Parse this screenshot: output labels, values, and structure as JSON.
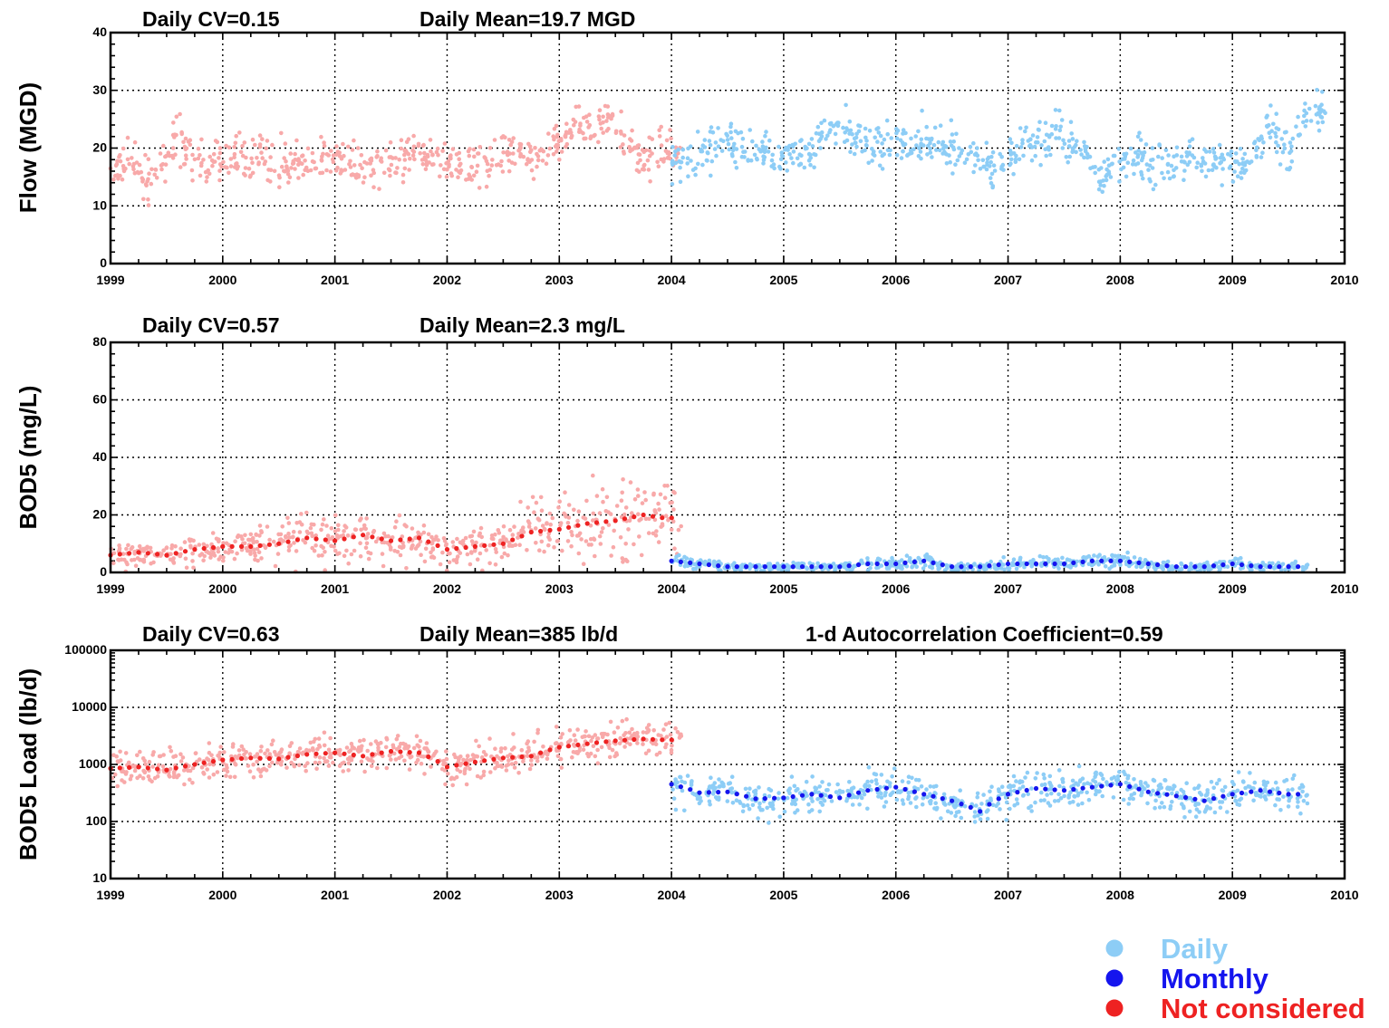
{
  "chart_data": [
    {
      "type": "scatter",
      "ylabel": "Flow (MGD)",
      "ylim": [
        0,
        40
      ],
      "yticks": [
        "0",
        "10",
        "20",
        "30",
        "40"
      ],
      "xticks": [
        "1999",
        "2000",
        "2001",
        "2002",
        "2003",
        "2004",
        "2005",
        "2006",
        "2007",
        "2008",
        "2009",
        "2010"
      ],
      "stats": [
        "Daily CV=0.15",
        "Daily Mean=19.7  MGD"
      ],
      "grid": true,
      "series": [
        {
          "name": "Not considered",
          "color": "#f8a9a9",
          "kind": "daily",
          "x": [
            "1999-01",
            "1999-03",
            "1999-05",
            "1999-07",
            "1999-08",
            "1999-09",
            "1999-11",
            "2000-01",
            "2000-03",
            "2000-06",
            "2000-09",
            "2000-12",
            "2001-03",
            "2001-06",
            "2001-09",
            "2001-12",
            "2002-03",
            "2002-06",
            "2002-08",
            "2002-11",
            "2003-01",
            "2003-03",
            "2003-05",
            "2003-06",
            "2003-08",
            "2003-10",
            "2003-12"
          ],
          "values": [
            16,
            17,
            15,
            16,
            24,
            19,
            17,
            18,
            19,
            18,
            17,
            18,
            17,
            17,
            19,
            17,
            17,
            18,
            20,
            19,
            20,
            25,
            22,
            26,
            21,
            19,
            19
          ]
        },
        {
          "name": "Daily",
          "color": "#8dcdf6",
          "kind": "daily",
          "x": [
            "2004-01",
            "2004-03",
            "2004-06",
            "2004-09",
            "2004-12",
            "2005-03",
            "2005-06",
            "2005-09",
            "2005-12",
            "2006-03",
            "2006-06",
            "2006-09",
            "2006-12",
            "2007-03",
            "2007-06",
            "2007-09",
            "2007-11",
            "2008-01",
            "2008-03",
            "2008-06",
            "2008-09",
            "2008-12",
            "2009-03",
            "2009-05",
            "2009-07",
            "2009-09"
          ],
          "values": [
            18,
            18,
            21,
            20,
            19,
            19,
            23,
            22,
            20,
            21,
            20,
            18,
            17,
            21,
            22,
            19,
            14,
            18,
            19,
            16,
            19,
            17,
            18,
            25,
            19,
            26
          ]
        }
      ]
    },
    {
      "type": "scatter",
      "ylabel": "BOD5 (mg/L)",
      "ylim": [
        0,
        80
      ],
      "yticks": [
        "0",
        "20",
        "40",
        "60",
        "80"
      ],
      "xticks": [
        "1999",
        "2000",
        "2001",
        "2002",
        "2003",
        "2004",
        "2005",
        "2006",
        "2007",
        "2008",
        "2009",
        "2010"
      ],
      "stats": [
        "Daily CV=0.57",
        "Daily Mean=2.3 mg/L"
      ],
      "grid": true,
      "series": [
        {
          "name": "Not considered",
          "color": "#f8a9a9",
          "kind": "daily",
          "x": [
            "1999-01",
            "1999-04",
            "1999-07",
            "1999-10",
            "2000-01",
            "2000-04",
            "2000-07",
            "2000-10",
            "2001-01",
            "2001-04",
            "2001-07",
            "2001-10",
            "2002-01",
            "2002-04",
            "2002-07",
            "2002-10",
            "2003-01",
            "2003-04",
            "2003-07",
            "2003-10",
            "2003-12"
          ],
          "values": [
            6,
            7,
            6,
            8,
            9,
            9,
            10,
            12,
            11,
            13,
            11,
            12,
            8,
            9,
            10,
            14,
            15,
            17,
            18,
            20,
            19
          ]
        },
        {
          "name": "Not considered",
          "color": "#ee2222",
          "kind": "monthly",
          "x": [
            "1999-01",
            "1999-04",
            "1999-07",
            "1999-10",
            "2000-01",
            "2000-04",
            "2000-07",
            "2000-10",
            "2001-01",
            "2001-04",
            "2001-07",
            "2001-10",
            "2002-01",
            "2002-04",
            "2002-07",
            "2002-10",
            "2003-01",
            "2003-04",
            "2003-07",
            "2003-10",
            "2003-12"
          ],
          "values": [
            6,
            7,
            6,
            8,
            9,
            9,
            10,
            12,
            11,
            13,
            11,
            12,
            8,
            9,
            10,
            14,
            15,
            17,
            18,
            20,
            19
          ]
        },
        {
          "name": "Daily",
          "color": "#8dcdf6",
          "kind": "daily",
          "x": [
            "2004-01",
            "2004-04",
            "2004-07",
            "2004-10",
            "2005-01",
            "2005-04",
            "2005-07",
            "2005-10",
            "2006-01",
            "2006-04",
            "2006-07",
            "2006-10",
            "2007-01",
            "2007-04",
            "2007-07",
            "2007-10",
            "2008-01",
            "2008-04",
            "2008-07",
            "2008-10",
            "2009-01",
            "2009-04",
            "2009-07"
          ],
          "values": [
            4,
            3,
            2,
            2,
            2,
            2,
            2,
            3,
            3,
            4,
            2,
            2,
            3,
            3,
            3,
            4,
            4,
            3,
            2,
            2,
            3,
            2,
            2
          ]
        },
        {
          "name": "Monthly",
          "color": "#1515ee",
          "kind": "monthly",
          "x": [
            "2004-01",
            "2004-04",
            "2004-07",
            "2004-10",
            "2005-01",
            "2005-04",
            "2005-07",
            "2005-10",
            "2006-01",
            "2006-04",
            "2006-07",
            "2006-10",
            "2007-01",
            "2007-04",
            "2007-07",
            "2007-10",
            "2008-01",
            "2008-04",
            "2008-07",
            "2008-10",
            "2009-01",
            "2009-04",
            "2009-07"
          ],
          "values": [
            4,
            3,
            2,
            2,
            2,
            2,
            2,
            3,
            3,
            4,
            2,
            2,
            3,
            3,
            3,
            4,
            4,
            3,
            2,
            2,
            3,
            2,
            2
          ]
        }
      ]
    },
    {
      "type": "scatter",
      "ylabel": "BOD5 Load (lb/d)",
      "ylim": [
        10,
        100000
      ],
      "yscale": "log",
      "yticks": [
        "10",
        "100",
        "1000",
        "10000",
        "100000"
      ],
      "xticks": [
        "1999",
        "2000",
        "2001",
        "2002",
        "2003",
        "2004",
        "2005",
        "2006",
        "2007",
        "2008",
        "2009",
        "2010"
      ],
      "stats": [
        "Daily CV=0.63",
        "Daily Mean=385  lb/d",
        "1-d Autocorrelation Coefficient=0.59"
      ],
      "grid": true,
      "series": [
        {
          "name": "Not considered",
          "color": "#f8a9a9",
          "kind": "daily",
          "x": [
            "1999-01",
            "1999-04",
            "1999-07",
            "1999-10",
            "2000-01",
            "2000-04",
            "2000-07",
            "2000-10",
            "2001-01",
            "2001-04",
            "2001-07",
            "2001-10",
            "2002-01",
            "2002-04",
            "2002-07",
            "2002-10",
            "2003-01",
            "2003-04",
            "2003-07",
            "2003-10",
            "2003-12"
          ],
          "values": [
            850,
            900,
            800,
            1000,
            1200,
            1300,
            1250,
            1500,
            1600,
            1400,
            1700,
            1600,
            900,
            1100,
            1300,
            1400,
            2000,
            2300,
            2600,
            2800,
            2700
          ]
        },
        {
          "name": "Not considered",
          "color": "#ee2222",
          "kind": "monthly",
          "x": [
            "1999-01",
            "1999-04",
            "1999-07",
            "1999-10",
            "2000-01",
            "2000-04",
            "2000-07",
            "2000-10",
            "2001-01",
            "2001-04",
            "2001-07",
            "2001-10",
            "2002-01",
            "2002-04",
            "2002-07",
            "2002-10",
            "2003-01",
            "2003-04",
            "2003-07",
            "2003-10",
            "2003-12"
          ],
          "values": [
            850,
            900,
            800,
            1000,
            1200,
            1300,
            1250,
            1500,
            1600,
            1400,
            1700,
            1600,
            900,
            1100,
            1300,
            1400,
            2000,
            2300,
            2600,
            2800,
            2700
          ]
        },
        {
          "name": "Daily",
          "color": "#8dcdf6",
          "kind": "daily",
          "x": [
            "2004-01",
            "2004-04",
            "2004-07",
            "2004-10",
            "2005-01",
            "2005-04",
            "2005-07",
            "2005-10",
            "2006-01",
            "2006-04",
            "2006-07",
            "2006-10",
            "2007-01",
            "2007-04",
            "2007-07",
            "2007-10",
            "2008-01",
            "2008-04",
            "2008-07",
            "2008-10",
            "2009-01",
            "2009-04",
            "2009-07"
          ],
          "values": [
            450,
            320,
            330,
            250,
            260,
            300,
            260,
            350,
            400,
            300,
            230,
            150,
            300,
            380,
            350,
            400,
            450,
            330,
            280,
            230,
            300,
            350,
            300
          ]
        },
        {
          "name": "Monthly",
          "color": "#1515ee",
          "kind": "monthly",
          "x": [
            "2004-01",
            "2004-04",
            "2004-07",
            "2004-10",
            "2005-01",
            "2005-04",
            "2005-07",
            "2005-10",
            "2006-01",
            "2006-04",
            "2006-07",
            "2006-10",
            "2007-01",
            "2007-04",
            "2007-07",
            "2007-10",
            "2008-01",
            "2008-04",
            "2008-07",
            "2008-10",
            "2009-01",
            "2009-04",
            "2009-07"
          ],
          "values": [
            450,
            320,
            330,
            250,
            260,
            300,
            260,
            350,
            400,
            300,
            230,
            150,
            300,
            380,
            350,
            400,
            450,
            330,
            280,
            230,
            300,
            350,
            300
          ]
        }
      ]
    }
  ],
  "legend": [
    {
      "label": "Daily",
      "color": "#8dcdf6"
    },
    {
      "label": "Monthly",
      "color": "#1515ee"
    },
    {
      "label": "Not considered",
      "color": "#ee2222"
    }
  ]
}
